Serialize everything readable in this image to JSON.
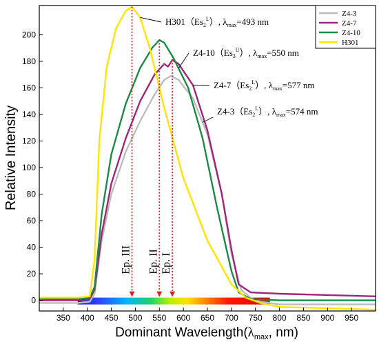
{
  "chart_data": {
    "type": "line",
    "title": "",
    "xlabel": "Dominant Wavelength",
    "xlabel_symbol": "λ",
    "xlabel_subscript": "max",
    "xlabel_unit": ", nm)",
    "xlabel_open": "(",
    "ylabel": "Relative Intensity",
    "xlim": [
      300,
      1000
    ],
    "ylim": [
      -8,
      222
    ],
    "x_ticks": [
      350,
      400,
      450,
      500,
      550,
      600,
      650,
      700,
      750,
      800,
      850,
      900,
      950
    ],
    "y_ticks": [
      0,
      20,
      40,
      60,
      80,
      100,
      120,
      140,
      160,
      180,
      200
    ],
    "grid": false,
    "legend_position": "top-right",
    "series": [
      {
        "name": "Z4-3",
        "color": "#bdbdbd",
        "x": [
          300,
          380,
          405,
          415,
          430,
          450,
          480,
          510,
          540,
          560,
          574,
          590,
          620,
          650,
          680,
          700,
          720,
          740,
          760,
          800,
          900,
          1000
        ],
        "y": [
          -2,
          -2,
          -1,
          5,
          45,
          80,
          112,
          135,
          155,
          166,
          169,
          166,
          152,
          125,
          80,
          35,
          8,
          2,
          -1,
          -3,
          -3,
          -3
        ]
      },
      {
        "name": "Z4-7",
        "color": "#a0267a",
        "x": [
          300,
          380,
          405,
          415,
          430,
          450,
          480,
          510,
          540,
          560,
          568,
          577,
          590,
          620,
          650,
          680,
          700,
          715,
          740,
          800,
          900,
          1000
        ],
        "y": [
          0,
          0,
          1,
          8,
          50,
          88,
          122,
          150,
          170,
          178,
          176,
          181,
          178,
          162,
          128,
          80,
          38,
          12,
          6,
          5,
          4,
          3
        ]
      },
      {
        "name": "Z4-10",
        "color": "#1a8a46",
        "x": [
          300,
          380,
          405,
          415,
          430,
          450,
          480,
          510,
          535,
          550,
          560,
          580,
          610,
          640,
          670,
          700,
          715,
          740,
          800,
          900,
          1000
        ],
        "y": [
          1,
          1,
          2,
          10,
          65,
          110,
          148,
          175,
          190,
          196,
          194,
          182,
          160,
          122,
          70,
          22,
          6,
          1,
          0,
          0,
          0
        ]
      },
      {
        "name": "H301",
        "color": "#ffe400",
        "x": [
          300,
          380,
          405,
          415,
          425,
          440,
          460,
          480,
          493,
          510,
          530,
          560,
          600,
          650,
          700,
          730,
          760,
          800,
          900,
          1000
        ],
        "y": [
          2,
          2,
          3,
          30,
          120,
          175,
          205,
          218,
          221,
          213,
          190,
          145,
          92,
          45,
          12,
          2,
          -2,
          -5,
          -6,
          -7
        ]
      }
    ],
    "annotations": [
      {
        "base": "H301（Es",
        "sub": "2",
        "sup": "L",
        "tail": "）,",
        "lambda": "λ",
        "lsub": "max",
        "value": "=493  nm",
        "x": 493,
        "series": "H301"
      },
      {
        "base": "Z4-10（Es",
        "sub": "3",
        "sup": "U",
        "tail": "）,",
        "lambda": "λ",
        "lsub": "max",
        "value": "=550  nm",
        "x": 550,
        "series": "Z4-10"
      },
      {
        "base": "Z4-7（Es",
        "sub": "2",
        "sup": "L",
        "tail": "）,",
        "lambda": "λ",
        "lsub": "max",
        "value": "=577  nm",
        "x": 577,
        "series": "Z4-7"
      },
      {
        "base": "Z4-3（Es",
        "sub": "2",
        "sup": "L",
        "tail": "）,",
        "lambda": "λ",
        "lsub": "max",
        "value": "=574  nm",
        "x": 574,
        "series": "Z4-3"
      }
    ],
    "emission_points": [
      {
        "label": "Ep. III",
        "x": 493
      },
      {
        "label": "Ep. II",
        "x": 550
      },
      {
        "label": "Ep. I",
        "x": 577
      }
    ],
    "spectrum_bar": {
      "x_start": 380,
      "x_end": 780
    },
    "marker_color": "#e02020"
  }
}
